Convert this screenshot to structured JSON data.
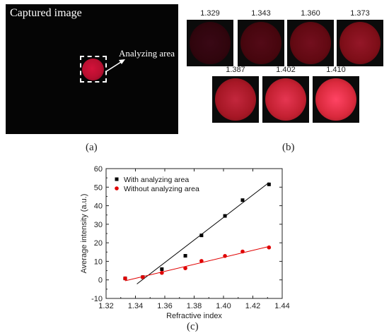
{
  "panel_a": {
    "title": "Captured image",
    "annotation": "Analyzing area",
    "caption": "(a)"
  },
  "panel_b": {
    "caption": "(b)",
    "thumbnails": [
      {
        "label": "1.329",
        "brightness": 0.08
      },
      {
        "label": "1.343",
        "brightness": 0.2
      },
      {
        "label": "1.360",
        "brightness": 0.35
      },
      {
        "label": "1.373",
        "brightness": 0.5
      },
      {
        "label": "1.387",
        "brightness": 0.72
      },
      {
        "label": "1.402",
        "brightness": 0.88
      },
      {
        "label": "1.410",
        "brightness": 1.0
      }
    ]
  },
  "panel_c": {
    "caption": "(c)"
  },
  "chart_data": {
    "type": "scatter",
    "xlabel": "Refractive index",
    "ylabel": "Average intensity (a.u.)",
    "xlim": [
      1.32,
      1.44
    ],
    "ylim": [
      -10,
      60
    ],
    "xticks": [
      "1.32",
      "1.34",
      "1.36",
      "1.38",
      "1.40",
      "1.42",
      "1.44"
    ],
    "yticks": [
      "-10",
      "0",
      "10",
      "20",
      "30",
      "40",
      "50",
      "60"
    ],
    "legend_position": "top-left",
    "series": [
      {
        "name": "With analyzing area",
        "color": "#000000",
        "marker": "square",
        "x": [
          1.333,
          1.345,
          1.358,
          1.374,
          1.385,
          1.401,
          1.413,
          1.431
        ],
        "y": [
          0.8,
          1.5,
          5.8,
          13.0,
          24.0,
          34.5,
          43.0,
          51.5
        ],
        "fit": {
          "x": [
            1.341,
            1.431
          ],
          "y": [
            -2.2,
            52.5
          ]
        }
      },
      {
        "name": "Without analyzing area",
        "color": "#e00000",
        "marker": "circle",
        "x": [
          1.333,
          1.345,
          1.358,
          1.374,
          1.385,
          1.401,
          1.413,
          1.431
        ],
        "y": [
          0.8,
          1.5,
          3.8,
          6.3,
          10.2,
          12.9,
          15.3,
          17.5
        ],
        "fit": {
          "x": [
            1.333,
            1.431
          ],
          "y": [
            -0.5,
            18.0
          ]
        }
      }
    ]
  }
}
